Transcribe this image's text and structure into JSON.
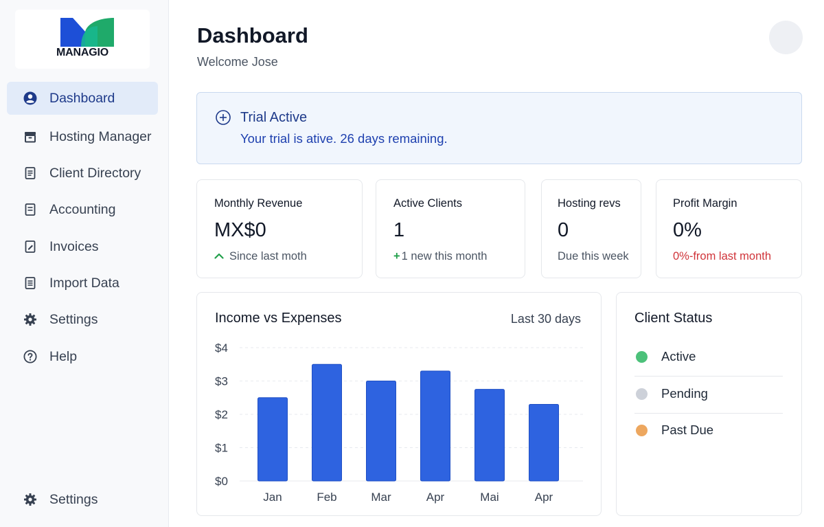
{
  "brand": {
    "name": "MANAGIO",
    "colors": {
      "blue": "#1d4fd7",
      "green": "#1faa6a"
    }
  },
  "sidebar": {
    "items": [
      {
        "label": "Dashboard",
        "icon": "user-circle-icon",
        "active": true
      },
      {
        "label": "Hosting Manager",
        "icon": "archive-box-icon"
      },
      {
        "label": "Client Directory",
        "icon": "document-icon"
      },
      {
        "label": "Accounting",
        "icon": "document-icon"
      },
      {
        "label": "Invoices",
        "icon": "edit-document-icon"
      },
      {
        "label": "Import Data",
        "icon": "document-icon"
      },
      {
        "label": "Settings",
        "icon": "gear-icon"
      },
      {
        "label": "Help",
        "icon": "help-circle-icon"
      }
    ],
    "footer": {
      "label": "Settings",
      "icon": "gear-icon"
    }
  },
  "header": {
    "title": "Dashboard",
    "subtitle": "Welcome Jose"
  },
  "trial": {
    "icon": "plus-circle-icon",
    "title": "Trial Active",
    "message": "Your trial is ative. 26 days remaining."
  },
  "stats": {
    "revenue": {
      "label": "Monthly Revenue",
      "value": "MX$0",
      "note": "Since last moth",
      "note_icon": "chevron-up-icon"
    },
    "clients": {
      "label": "Active Clients",
      "value": "1",
      "note_prefix": "+",
      "note": "1 new this month"
    },
    "hosting": {
      "label": "Hosting revs",
      "value": "0",
      "note": "Due this week"
    },
    "margin": {
      "label": "Profit Margin",
      "value": "0%",
      "note": "0%-from last month",
      "note_color": "#d0343a"
    }
  },
  "chart": {
    "title": "Income vs Expenses",
    "range": "Last 30 days"
  },
  "chart_data": {
    "type": "bar",
    "title": "Income vs Expenses",
    "categories": [
      "Jan",
      "Feb",
      "Mar",
      "Apr",
      "Mai",
      "Apr"
    ],
    "values": [
      2.5,
      3.5,
      3.0,
      3.3,
      2.75,
      2.3
    ],
    "yticks": [
      "$0",
      "$1",
      "$2",
      "$3",
      "$4"
    ],
    "ylim": [
      0,
      4
    ],
    "grid": true,
    "bar_color": "#2e63e0"
  },
  "client_status": {
    "title": "Client Status",
    "items": [
      {
        "label": "Active",
        "color": "#4cc17a"
      },
      {
        "label": "Pending",
        "color": "#cdd1d9"
      },
      {
        "label": "Past Due",
        "color": "#eda75f"
      }
    ]
  }
}
